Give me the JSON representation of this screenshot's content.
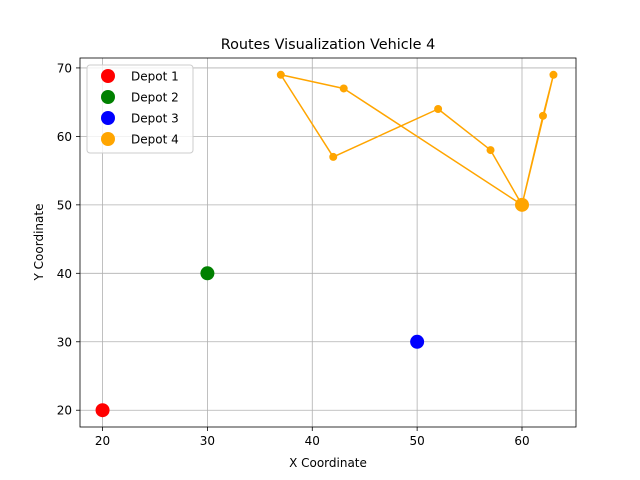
{
  "chart_data": {
    "type": "scatter",
    "title": "Routes Visualization Vehicle 4",
    "xlabel": "X Coordinate",
    "ylabel": "Y Coordinate",
    "xlim": [
      17.85,
      65.15
    ],
    "ylim": [
      17.55,
      71.45
    ],
    "xticks": [
      20,
      30,
      40,
      50,
      60
    ],
    "yticks": [
      20,
      30,
      40,
      50,
      60,
      70
    ],
    "grid": true,
    "legend_position": "upper-left",
    "depots": [
      {
        "name": "Depot 1",
        "x": 20,
        "y": 20,
        "color": "#ff0000"
      },
      {
        "name": "Depot 2",
        "x": 30,
        "y": 40,
        "color": "#008000"
      },
      {
        "name": "Depot 3",
        "x": 50,
        "y": 30,
        "color": "#0000ff"
      },
      {
        "name": "Depot 4",
        "x": 60,
        "y": 50,
        "color": "#ffa500"
      }
    ],
    "route": {
      "color": "#ffa500",
      "points": [
        {
          "x": 60,
          "y": 50
        },
        {
          "x": 57,
          "y": 58
        },
        {
          "x": 52,
          "y": 64
        },
        {
          "x": 42,
          "y": 57
        },
        {
          "x": 37,
          "y": 69
        },
        {
          "x": 43,
          "y": 67
        },
        {
          "x": 60,
          "y": 50
        },
        {
          "x": 63,
          "y": 69
        },
        {
          "x": 62,
          "y": 63
        },
        {
          "x": 60,
          "y": 50
        }
      ]
    }
  }
}
